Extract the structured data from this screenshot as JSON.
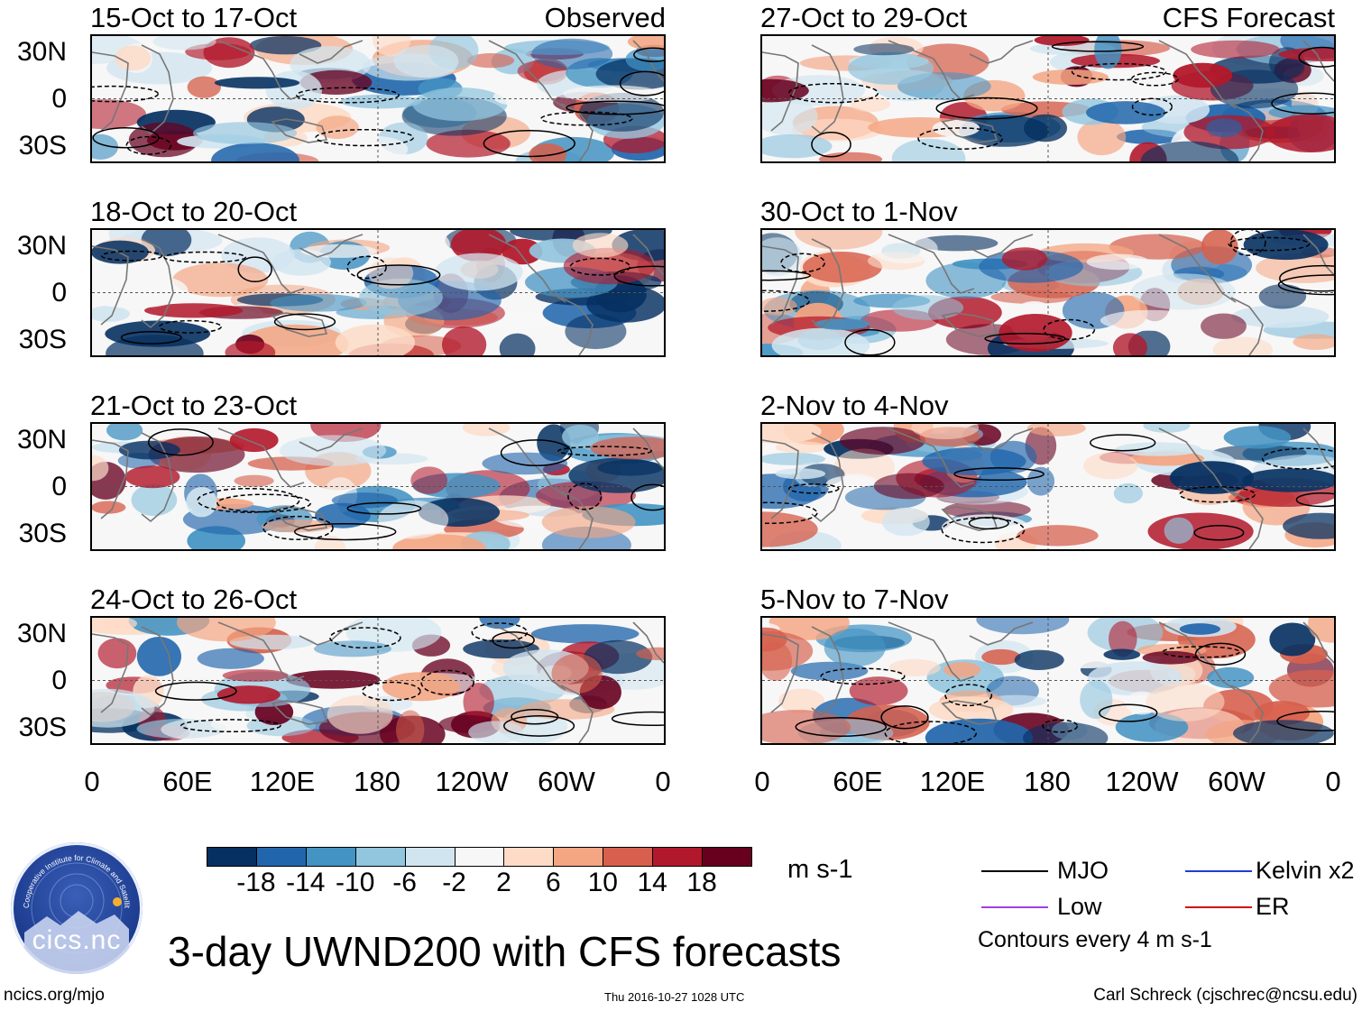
{
  "title": "3-day UWND200 with CFS forecasts",
  "observed_label": "Observed",
  "forecast_label": "CFS Forecast",
  "panels": {
    "left": [
      {
        "date": "15-Oct to 17-Oct"
      },
      {
        "date": "18-Oct to 20-Oct"
      },
      {
        "date": "21-Oct to 23-Oct"
      },
      {
        "date": "24-Oct to 26-Oct"
      }
    ],
    "right": [
      {
        "date": "27-Oct to 29-Oct"
      },
      {
        "date": "30-Oct to 1-Nov"
      },
      {
        "date": "2-Nov to 4-Nov"
      },
      {
        "date": "5-Nov to 7-Nov"
      }
    ]
  },
  "y_ticks": [
    "30N",
    "0",
    "30S"
  ],
  "x_ticks": [
    "0",
    "60E",
    "120E",
    "180",
    "120W",
    "60W",
    "0"
  ],
  "colorbar": {
    "labels": [
      "-18",
      "-14",
      "-10",
      "-6",
      "-2",
      "2",
      "6",
      "10",
      "14",
      "18"
    ],
    "colors": [
      "#053061",
      "#2166ac",
      "#4393c3",
      "#92c5de",
      "#d1e5f0",
      "#f7f7f7",
      "#fddbc7",
      "#f4a582",
      "#d6604d",
      "#b2182b",
      "#67001f"
    ],
    "unit": "m s-1"
  },
  "legend": {
    "mjo": "MJO",
    "kelvin": "Kelvin x2",
    "low": "Low",
    "er": "ER",
    "mjo_color": "#000000",
    "kelvin_color": "#1f3fd0",
    "low_color": "#a040e0",
    "er_color": "#d01010",
    "contours": "Contours every 4 m s-1"
  },
  "logo_text": "cics.nc",
  "logo_ring_text": "Cooperative Institute for Climate and Satellites",
  "footer": {
    "left": "ncics.org/mjo",
    "center": "Thu 2016-10-27 1028 UTC",
    "right": "Carl Schreck (cjschrec@ncsu.edu)"
  }
}
